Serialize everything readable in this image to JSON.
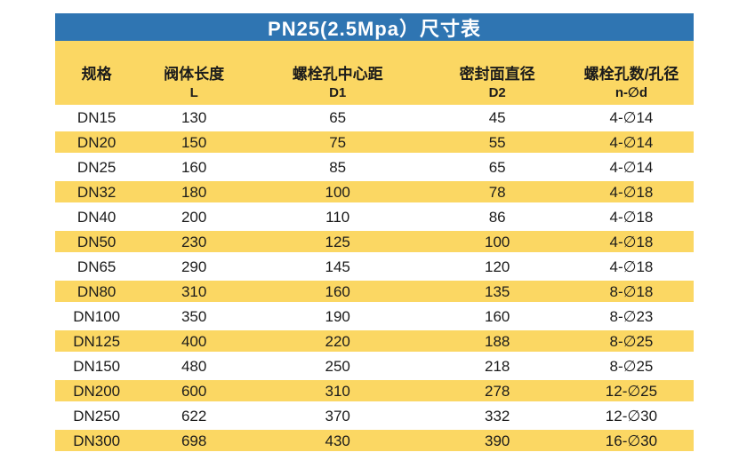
{
  "colors": {
    "page_bg": "#ffffff",
    "title_bar_bg": "#2f75b2",
    "title_text": "#ffffff",
    "band_yellow": "#fbd763",
    "row_white": "#ffffff",
    "text": "#1b1b1b"
  },
  "chart_data": {
    "type": "table",
    "title": "PN25(2.5Mpa）尺寸表",
    "columns": [
      {
        "label": "规格",
        "sub": ""
      },
      {
        "label": "阀体长度",
        "sub": "L"
      },
      {
        "label": "螺栓孔中心距",
        "sub": "D1"
      },
      {
        "label": "密封面直径",
        "sub": "D2"
      },
      {
        "label": "螺栓孔数/孔径",
        "sub": "n-∅d"
      }
    ],
    "rows": [
      [
        "DN15",
        "130",
        "65",
        "45",
        "4-∅14"
      ],
      [
        "DN20",
        "150",
        "75",
        "55",
        "4-∅14"
      ],
      [
        "DN25",
        "160",
        "85",
        "65",
        "4-∅14"
      ],
      [
        "DN32",
        "180",
        "100",
        "78",
        "4-∅18"
      ],
      [
        "DN40",
        "200",
        "110",
        "86",
        "4-∅18"
      ],
      [
        "DN50",
        "230",
        "125",
        "100",
        "4-∅18"
      ],
      [
        "DN65",
        "290",
        "145",
        "120",
        "4-∅18"
      ],
      [
        "DN80",
        "310",
        "160",
        "135",
        "8-∅18"
      ],
      [
        "DN100",
        "350",
        "190",
        "160",
        "8-∅23"
      ],
      [
        "DN125",
        "400",
        "220",
        "188",
        "8-∅25"
      ],
      [
        "DN150",
        "480",
        "250",
        "218",
        "8-∅25"
      ],
      [
        "DN200",
        "600",
        "310",
        "278",
        "12-∅25"
      ],
      [
        "DN250",
        "622",
        "370",
        "332",
        "12-∅30"
      ],
      [
        "DN300",
        "698",
        "430",
        "390",
        "16-∅30"
      ]
    ],
    "layout": {
      "stripe_pattern": "first data row white, then alternating yellow/white bands",
      "column_width_percents": [
        13,
        17.5,
        27.5,
        22.5,
        19.5
      ],
      "grid": "off"
    }
  }
}
